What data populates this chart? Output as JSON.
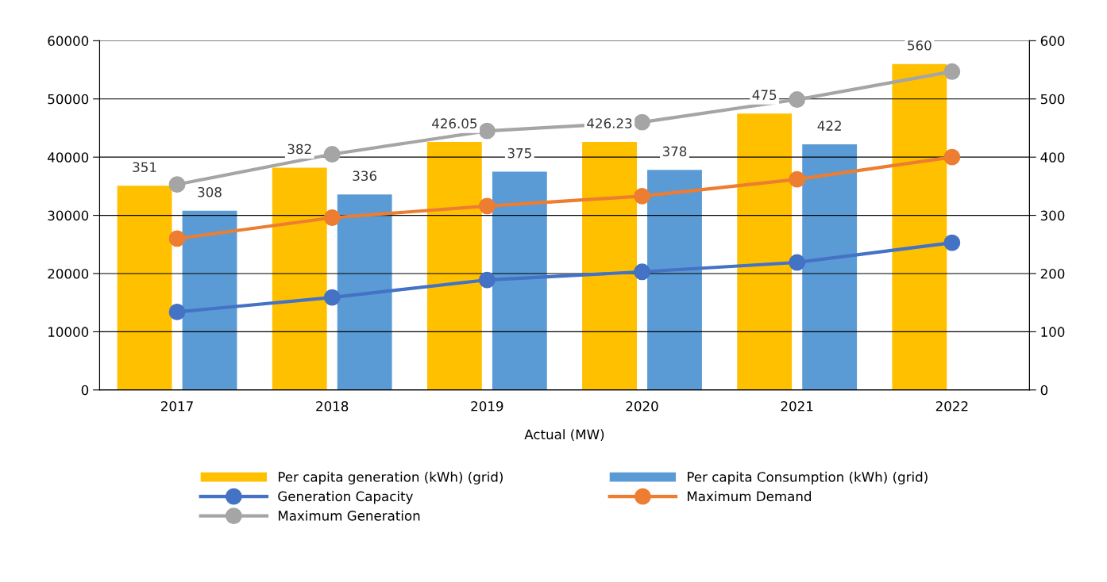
{
  "chart_data": {
    "type": "bar",
    "categories": [
      "2017",
      "2018",
      "2019",
      "2020",
      "2021",
      "2022"
    ],
    "xlabel": "Actual (MW)",
    "ylim": [
      0,
      60000
    ],
    "yticks": [
      0,
      10000,
      20000,
      30000,
      40000,
      50000,
      60000
    ],
    "y2lim": [
      0,
      600
    ],
    "y2ticks": [
      0,
      100,
      200,
      300,
      400,
      500,
      600
    ],
    "grid": "y",
    "legend": "bottom",
    "marker": "circle",
    "series": [
      {
        "name": "Per capita generation (kWh) (grid)",
        "axis": "y2",
        "color": "#ffc000",
        "values": [
          351,
          382,
          426.05,
          426.23,
          475,
          560
        ],
        "value_labels": [
          "351",
          "382",
          "426.05",
          "426.23",
          "475",
          "560"
        ]
      },
      {
        "name": "Per capita Consumption (kWh) (grid)",
        "axis": "y2",
        "color": "#5b9bd5",
        "values": [
          308,
          336,
          375,
          378,
          422,
          null
        ],
        "value_labels": [
          "308",
          "336",
          "375",
          "378",
          "422",
          null
        ]
      },
      {
        "name": "Generation Capacity",
        "type": "line",
        "color": "#4472c4",
        "values": [
          13400,
          15900,
          18900,
          20300,
          21900,
          25300
        ]
      },
      {
        "name": "Maximum Demand",
        "type": "line",
        "color": "#ed7d31",
        "values": [
          26000,
          29600,
          31600,
          33300,
          36200,
          40000
        ]
      },
      {
        "name": "Maximum Generation",
        "type": "line",
        "color": "#a5a5a5",
        "values": [
          35300,
          40500,
          44500,
          46000,
          49900,
          54700
        ]
      }
    ]
  }
}
